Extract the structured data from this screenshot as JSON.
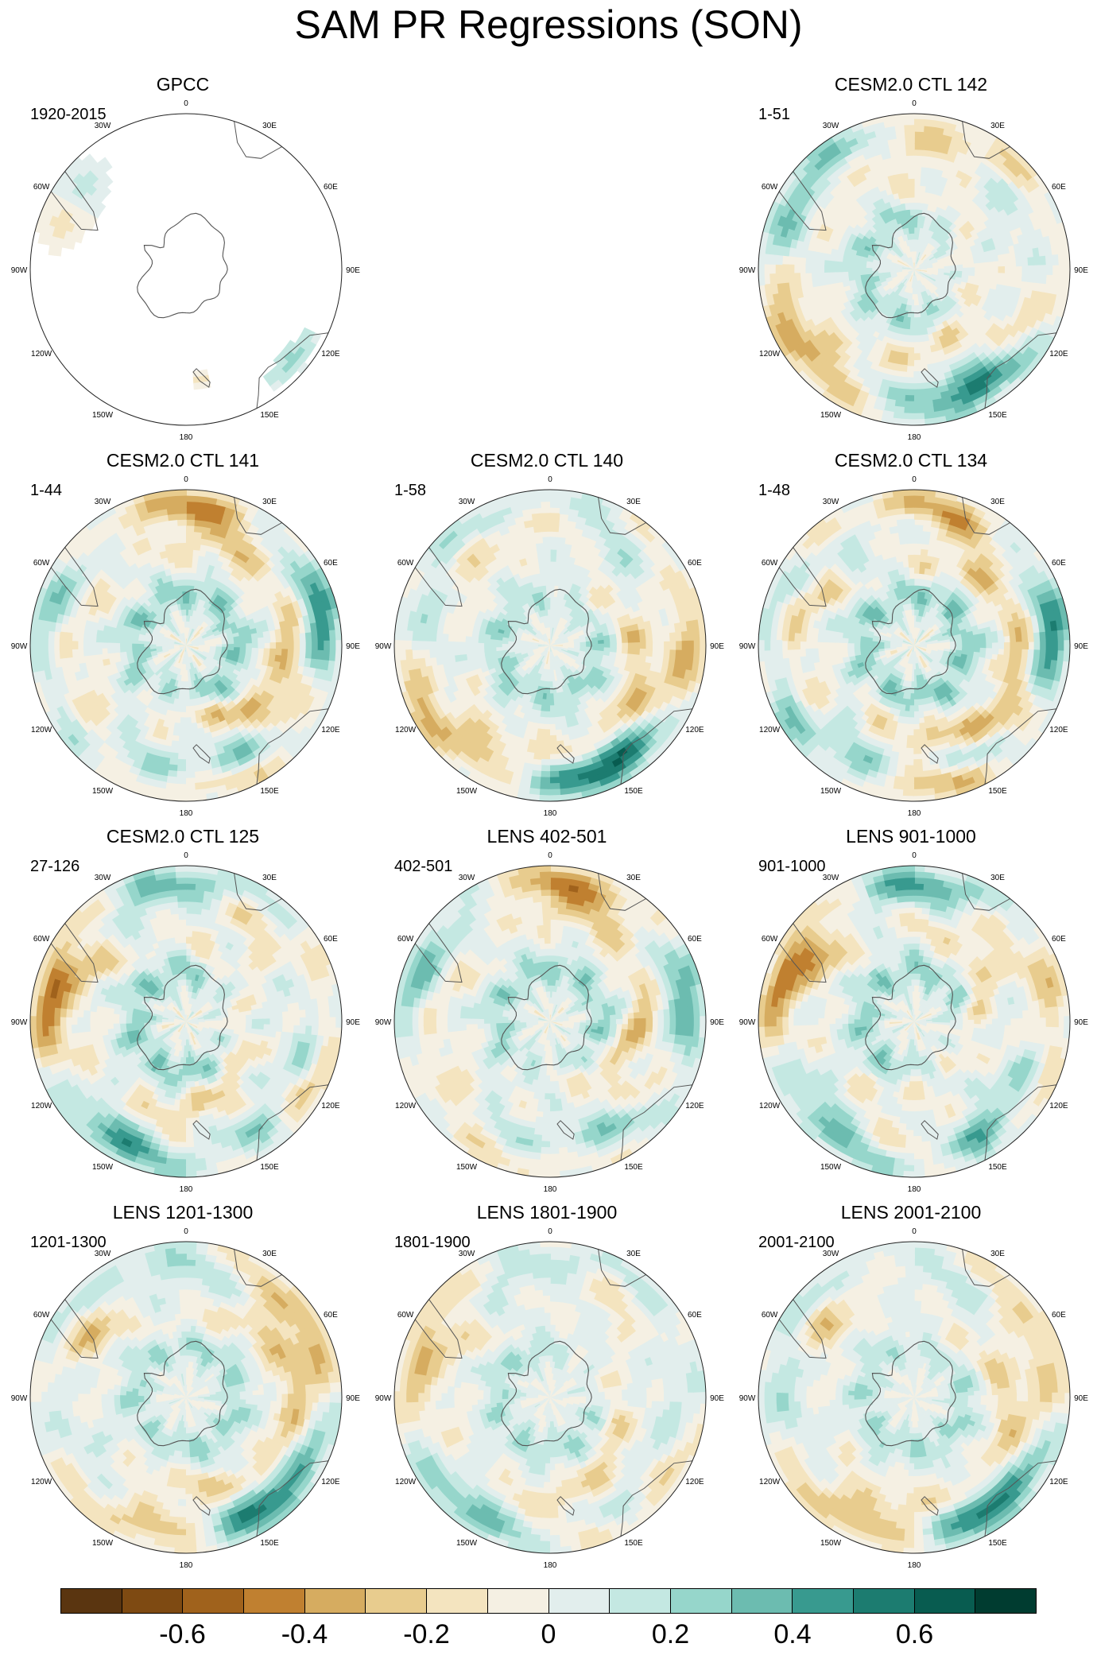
{
  "figure": {
    "title": "SAM PR Regressions (SON)"
  },
  "panels": [
    {
      "title": "GPCC",
      "period": "1920-2015",
      "col": 0,
      "row": 0,
      "kind": "obs",
      "seed": 3,
      "amp": 0.3
    },
    {
      "title": "CESM2.0 CTL 142",
      "period": "1-51",
      "col": 2,
      "row": 0,
      "kind": "model",
      "seed": 11,
      "amp": 0.85
    },
    {
      "title": "CESM2.0 CTL 141",
      "period": "1-44",
      "col": 0,
      "row": 1,
      "kind": "model",
      "seed": 23,
      "amp": 1.0
    },
    {
      "title": "CESM2.0 CTL 140",
      "period": "1-58",
      "col": 1,
      "row": 1,
      "kind": "model",
      "seed": 37,
      "amp": 0.85
    },
    {
      "title": "CESM2.0 CTL 134",
      "period": "1-48",
      "col": 2,
      "row": 1,
      "kind": "model",
      "seed": 41,
      "amp": 1.05
    },
    {
      "title": "CESM2.0 CTL 125",
      "period": "27-126",
      "col": 0,
      "row": 2,
      "kind": "model",
      "seed": 53,
      "amp": 1.0
    },
    {
      "title": "LENS 402-501",
      "period": "402-501",
      "col": 1,
      "row": 2,
      "kind": "model",
      "seed": 67,
      "amp": 0.9
    },
    {
      "title": "LENS 901-1000",
      "period": "901-1000",
      "col": 2,
      "row": 2,
      "kind": "model",
      "seed": 71,
      "amp": 0.95
    },
    {
      "title": "LENS 1201-1300",
      "period": "1201-1300",
      "col": 0,
      "row": 3,
      "kind": "model",
      "seed": 83,
      "amp": 0.8
    },
    {
      "title": "LENS 1801-1900",
      "period": "1801-1900",
      "col": 1,
      "row": 3,
      "kind": "model",
      "seed": 97,
      "amp": 0.75
    },
    {
      "title": "LENS 2001-2100",
      "period": "2001-2100",
      "col": 2,
      "row": 3,
      "kind": "model",
      "seed": 101,
      "amp": 0.75
    }
  ],
  "longitude_labels": [
    {
      "text": "0",
      "lon": 0
    },
    {
      "text": "30E",
      "lon": 30
    },
    {
      "text": "60E",
      "lon": 60
    },
    {
      "text": "90E",
      "lon": 90
    },
    {
      "text": "120E",
      "lon": 120
    },
    {
      "text": "150E",
      "lon": 150
    },
    {
      "text": "180",
      "lon": 180
    },
    {
      "text": "150W",
      "lon": 210
    },
    {
      "text": "120W",
      "lon": 240
    },
    {
      "text": "90W",
      "lon": 270
    },
    {
      "text": "60W",
      "lon": 300
    },
    {
      "text": "30W",
      "lon": 330
    }
  ],
  "colorbar": {
    "colors": [
      "#5a3510",
      "#7e4a12",
      "#a0621c",
      "#c08030",
      "#d6ac60",
      "#e8cc8e",
      "#f4e4bf",
      "#f5f0e3",
      "#e2eeed",
      "#c4e8e2",
      "#96d6cb",
      "#6cbcb0",
      "#389a8f",
      "#1c7c70",
      "#085c50",
      "#003c30"
    ],
    "tick_labels": [
      "-0.6",
      "-0.4",
      "-0.2",
      "0",
      "0.2",
      "0.4",
      "0.6"
    ],
    "tick_values": [
      -0.6,
      -0.4,
      -0.2,
      0,
      0.2,
      0.4,
      0.6
    ],
    "min": -0.8,
    "max": 0.8
  }
}
